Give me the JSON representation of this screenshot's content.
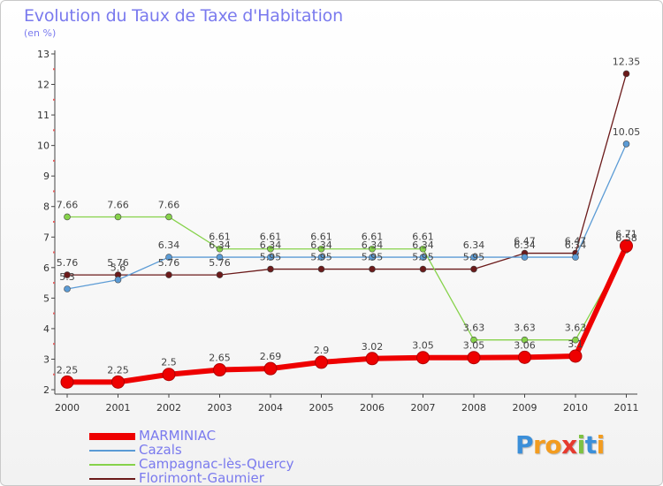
{
  "header": {
    "title": "Evolution du Taux de Taxe d'Habitation",
    "subtitle": "(en %)"
  },
  "logo": {
    "letters": [
      "P",
      "r",
      "o",
      "x",
      "i",
      "t",
      "i"
    ],
    "colors": [
      "#3b8fd9",
      "#f39c1f",
      "#f39c1f",
      "#e63a2e",
      "#7dc242",
      "#3b8fd9",
      "#f39c1f"
    ]
  },
  "chart_data": {
    "type": "line",
    "title": "Evolution du Taux de Taxe d'Habitation",
    "ylabel": "(en %)",
    "xlabel": "",
    "x": [
      "2000",
      "2001",
      "2002",
      "2003",
      "2004",
      "2005",
      "2006",
      "2007",
      "2008",
      "2009",
      "2010",
      "2011"
    ],
    "ylim": [
      2,
      13
    ],
    "yticks": [
      2,
      3,
      4,
      5,
      6,
      7,
      8,
      9,
      10,
      11,
      12,
      13
    ],
    "grid": false,
    "legend": "bottom-left",
    "series": [
      {
        "name": "Florimont-Gaumier",
        "color": "#6b1a1a",
        "values": [
          5.76,
          5.76,
          5.76,
          5.76,
          5.95,
          5.95,
          5.95,
          5.95,
          5.95,
          6.47,
          6.47,
          12.35
        ],
        "labels": [
          "5.76",
          "5.76",
          "5.76",
          "5.76",
          "5.95",
          "5.95",
          "5.95",
          "5.95",
          "5.95",
          "6.47",
          "6.47",
          "12.35"
        ]
      },
      {
        "name": "Cazals",
        "color": "#5b9bd5",
        "values": [
          5.3,
          5.6,
          6.34,
          6.34,
          6.34,
          6.34,
          6.34,
          6.34,
          6.34,
          6.34,
          6.34,
          10.05
        ],
        "labels": [
          "5.3",
          "5.6",
          "6.34",
          "6.34",
          "6.34",
          "6.34",
          "6.34",
          "6.34",
          "6.34",
          "6.34",
          "6.34",
          "10.05"
        ]
      },
      {
        "name": "Campagnac-lès-Quercy",
        "color": "#86d24a",
        "values": [
          7.66,
          7.66,
          7.66,
          6.61,
          6.61,
          6.61,
          6.61,
          6.61,
          3.63,
          3.63,
          3.63,
          6.58
        ],
        "labels": [
          "7.66",
          "7.66",
          "7.66",
          "6.61",
          "6.61",
          "6.61",
          "6.61",
          "6.61",
          "3.63",
          "3.63",
          "3.63",
          "6.58"
        ]
      },
      {
        "name": "MARMINIAC",
        "color": "#ee0000",
        "values": [
          2.25,
          2.25,
          2.5,
          2.65,
          2.69,
          2.9,
          3.02,
          3.05,
          3.05,
          3.06,
          3.1,
          6.71
        ],
        "labels": [
          "2.25",
          "2.25",
          "2.5",
          "2.65",
          "2.69",
          "2.9",
          "3.02",
          "3.05",
          "3.05",
          "3.06",
          "3.1",
          "6.71"
        ]
      }
    ],
    "legend_order": [
      "MARMINIAC",
      "Cazals",
      "Campagnac-lès-Quercy",
      "Florimont-Gaumier"
    ]
  }
}
